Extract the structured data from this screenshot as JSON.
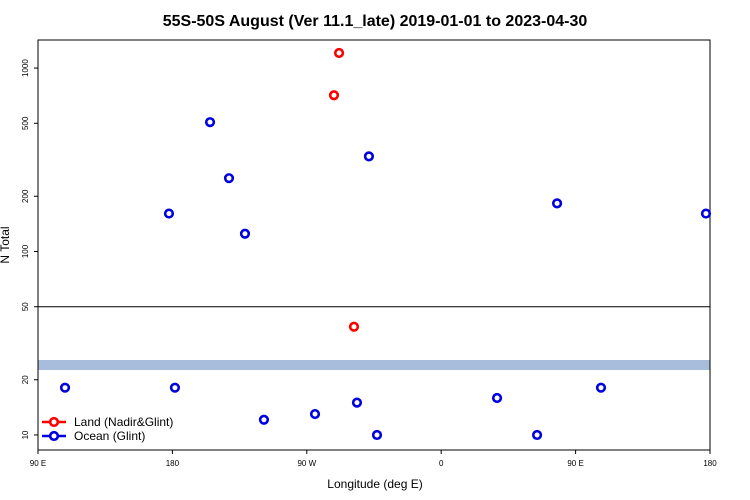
{
  "chart_data": {
    "type": "scatter",
    "title": "55S-50S August (Ver 11.1_late)   2019-01-01 to 2023-04-30",
    "xlabel": "Longitude (deg E)",
    "ylabel": "N Total",
    "log_y": true,
    "legend": "bottom-left",
    "xlim": [
      90,
      540
    ],
    "ylim": [
      8.28,
      1422
    ],
    "xticks": [
      {
        "value": 90,
        "label": "90 E"
      },
      {
        "value": 180,
        "label": "180"
      },
      {
        "value": 270,
        "label": "90 W"
      },
      {
        "value": 360,
        "label": "0"
      },
      {
        "value": 450,
        "label": "90 E"
      },
      {
        "value": 540,
        "label": "180"
      }
    ],
    "yticks": [
      10,
      20,
      50,
      100,
      200,
      500,
      1000
    ],
    "hline": 50,
    "series": [
      {
        "name": "Land (Nadir&Glint)",
        "color": "#ff0000",
        "x": [
          291.6,
          288.2,
          301.6
        ],
        "values": [
          1208,
          711,
          38.9
        ]
      },
      {
        "name": "Ocean (Glint)",
        "color": "#0000e0",
        "x": [
          108.1,
          177.7,
          181.7,
          205.2,
          217.9,
          228.6,
          241.3,
          275.5,
          303.6,
          311.6,
          317.0,
          397.4,
          424.2,
          437.6,
          467.0,
          537.3
        ],
        "values": [
          18.1,
          161,
          18.1,
          507,
          251,
          125,
          12.1,
          13.0,
          15.0,
          330,
          10,
          15.9,
          10,
          183,
          18.1,
          161
        ]
      }
    ]
  }
}
